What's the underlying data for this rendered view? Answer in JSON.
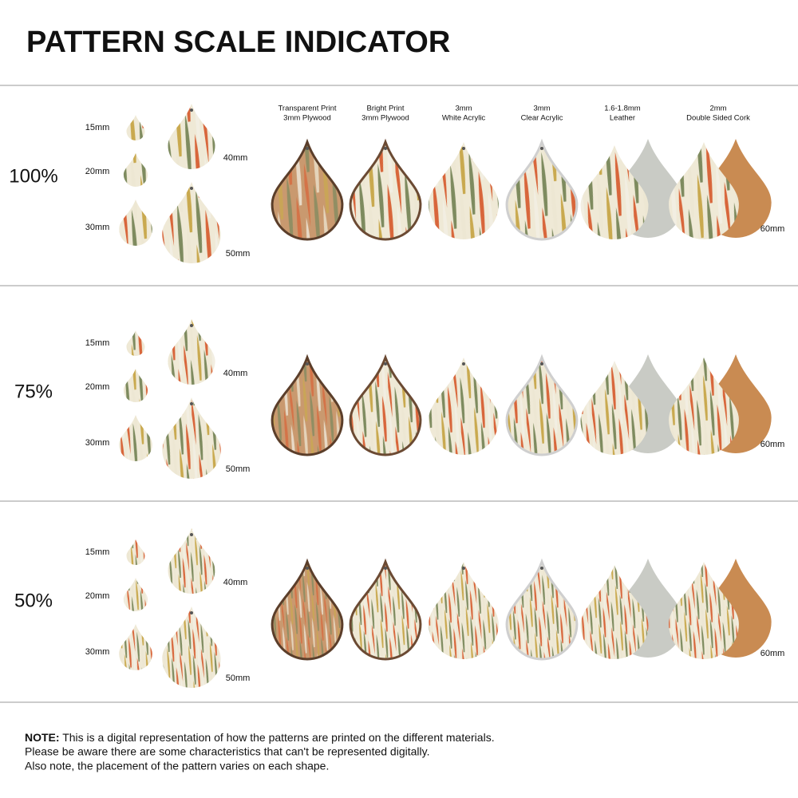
{
  "title": "PATTERN SCALE INDICATOR",
  "materials": [
    {
      "line1": "Transparent Print",
      "line2": "3mm Plywood"
    },
    {
      "line1": "Bright Print",
      "line2": "3mm Plywood"
    },
    {
      "line1": "3mm",
      "line2": "White Acrylic"
    },
    {
      "line1": "3mm",
      "line2": "Clear Acrylic"
    },
    {
      "line1": "1.6-1.8mm",
      "line2": "Leather"
    },
    {
      "line1": "2mm",
      "line2": "Double Sided Cork"
    }
  ],
  "rows": [
    {
      "scale": "100%",
      "sizes": [
        "15mm",
        "20mm",
        "30mm",
        "40mm",
        "50mm"
      ],
      "large": "60mm"
    },
    {
      "scale": "75%",
      "sizes": [
        "15mm",
        "20mm",
        "30mm",
        "40mm",
        "50mm"
      ],
      "large": "60mm"
    },
    {
      "scale": "50%",
      "sizes": [
        "15mm",
        "20mm",
        "30mm",
        "40mm",
        "50mm"
      ],
      "large": "60mm"
    }
  ],
  "note": {
    "label": "NOTE:",
    "lines": [
      "This is a digital representation of how the patterns are printed on the different materials.",
      "Please be aware there are some characteristics that can't be represented digitally.",
      "Also note, the placement of the pattern varies on each shape."
    ]
  }
}
